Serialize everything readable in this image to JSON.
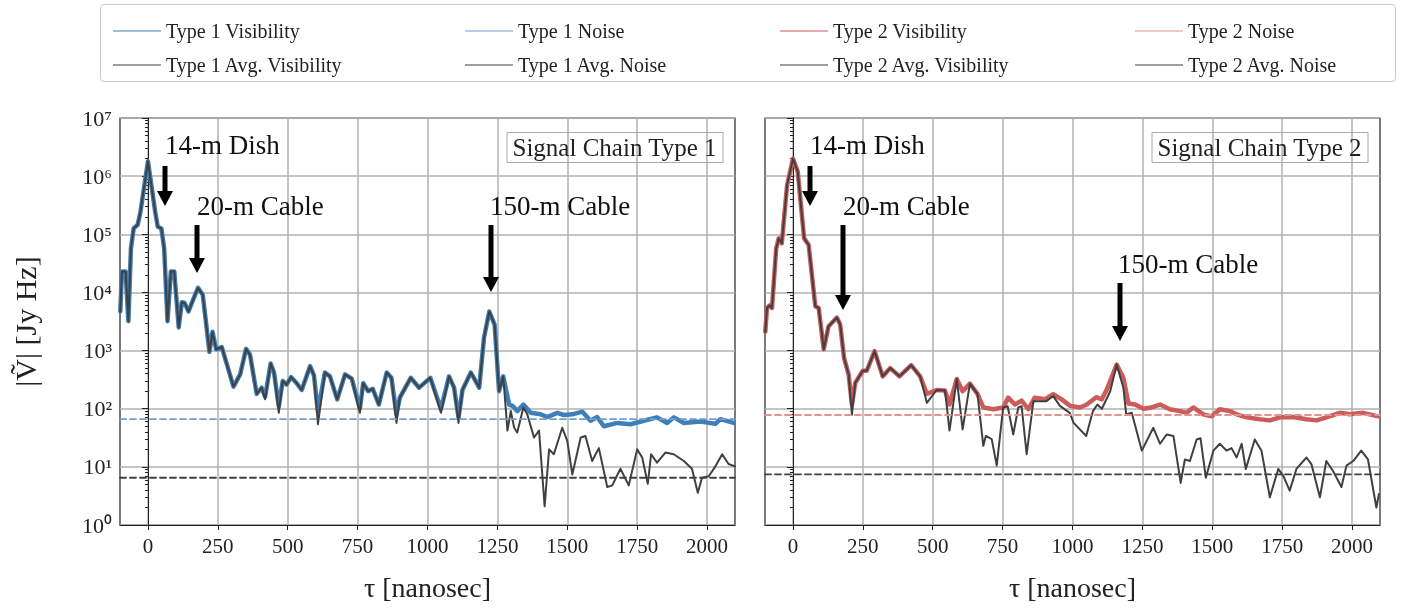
{
  "chart_data": [
    {
      "type": "line",
      "title": "Signal Chain Type 1",
      "xlabel": "τ [nanosec]",
      "ylabel": "|Ṽ| [Jy Hz]",
      "log": "y",
      "grid": true,
      "legend": "top",
      "marker": "none",
      "xlim": [
        -100,
        2100
      ],
      "xticks": [
        0,
        250,
        500,
        750,
        1000,
        1250,
        1500,
        1750,
        2000
      ],
      "ylim": [
        1,
        10000000
      ],
      "yticks": [
        {
          "value": 1,
          "label": "10⁰"
        },
        {
          "value": 10,
          "label": "10¹"
        },
        {
          "value": 100,
          "label": "10²"
        },
        {
          "value": 1000,
          "label": "10³"
        },
        {
          "value": 10000,
          "label": "10⁴"
        },
        {
          "value": 100000,
          "label": "10⁵"
        },
        {
          "value": 1000000,
          "label": "10⁶"
        },
        {
          "value": 10000000,
          "label": "10⁷"
        }
      ],
      "annotations": [
        "14-m Dish",
        "20-m Cable",
        "150-m Cable"
      ],
      "series": [
        {
          "name": "Type 1 Visibility",
          "color": "#3f7fb8",
          "x": [
            -99,
            -93,
            -80,
            -70,
            -61,
            -51,
            -37,
            -27,
            0,
            26,
            35,
            48,
            58,
            70,
            82,
            94,
            110,
            121,
            131,
            145,
            157,
            179,
            196,
            220,
            231,
            244,
            264,
            306,
            330,
            351,
            365,
            389,
            407,
            419,
            439,
            451,
            468,
            482,
            496,
            512,
            532,
            550,
            580,
            594,
            608,
            633,
            651,
            677,
            705,
            729,
            758,
            770,
            788,
            804,
            826,
            854,
            871,
            889,
            901,
            940,
            970,
            1010,
            1048,
            1077,
            1095,
            1111,
            1125,
            1155,
            1185,
            1202,
            1221,
            1240,
            1256,
            1271,
            1292,
            1304,
            1321,
            1343,
            1369,
            1405,
            1429,
            1464,
            1488,
            1518,
            1554,
            1583,
            1607,
            1631,
            1679,
            1726,
            1774,
            1821,
            1857,
            1881,
            1917,
            1976,
            2030,
            2048,
            2095
          ],
          "values": [
            4700,
            23000,
            23000,
            3200,
            57000,
            127000,
            145000,
            240000,
            1800000,
            240000,
            135000,
            126000,
            57000,
            3200,
            23000,
            23000,
            2500,
            6800,
            6600,
            4700,
            6600,
            12000,
            9100,
            950,
            2100,
            1050,
            1150,
            240,
            390,
            1070,
            850,
            180,
            230,
            160,
            600,
            420,
            110,
            300,
            260,
            350,
            275,
            210,
            540,
            370,
            90,
            420,
            360,
            145,
            390,
            330,
            100,
            275,
            200,
            220,
            118,
            420,
            340,
            80,
            155,
            340,
            230,
            340,
            100,
            360,
            230,
            70,
            210,
            420,
            230,
            1650,
            4700,
            2800,
            200,
            360,
            118,
            112,
            91,
            118,
            85,
            80,
            72,
            85,
            78,
            80,
            89,
            62,
            72,
            50,
            57,
            54,
            62,
            71,
            57,
            71,
            57,
            60,
            55,
            66,
            57
          ]
        },
        {
          "name": "Type 1 Avg. Visibility",
          "color": "#404040",
          "x": [
            -99,
            -93,
            -80,
            -70,
            -61,
            -51,
            -37,
            -27,
            0,
            26,
            35,
            48,
            58,
            70,
            82,
            94,
            110,
            121,
            131,
            145,
            157,
            179,
            196,
            220,
            231,
            244,
            264,
            306,
            330,
            351,
            365,
            389,
            407,
            419,
            439,
            451,
            468,
            482,
            496,
            512,
            532,
            550,
            580,
            594,
            608,
            633,
            651,
            677,
            705,
            729,
            758,
            770,
            788,
            804,
            826,
            854,
            871,
            889,
            901,
            940,
            970,
            1010,
            1048,
            1077,
            1095,
            1111,
            1125,
            1155,
            1185,
            1202,
            1221,
            1240,
            1256,
            1271,
            1286,
            1298,
            1310,
            1321,
            1343,
            1357,
            1381,
            1399,
            1419,
            1435,
            1452,
            1482,
            1500,
            1518,
            1548,
            1565,
            1589,
            1613,
            1643,
            1661,
            1690,
            1720,
            1750,
            1768,
            1788,
            1800,
            1821,
            1851,
            1881,
            1917,
            1946,
            1967,
            1982,
            2006,
            2030,
            2054,
            2077,
            2100
          ],
          "values": [
            4700,
            23000,
            23000,
            3200,
            57000,
            127000,
            145000,
            240000,
            1800000,
            240000,
            135000,
            126000,
            57000,
            3200,
            23000,
            23000,
            2500,
            6800,
            6600,
            4700,
            6600,
            12000,
            9100,
            950,
            2100,
            1050,
            1150,
            240,
            390,
            1070,
            850,
            180,
            230,
            145,
            600,
            420,
            85,
            300,
            260,
            350,
            275,
            210,
            540,
            370,
            54,
            420,
            360,
            145,
            390,
            330,
            85,
            275,
            200,
            220,
            118,
            420,
            340,
            57,
            155,
            340,
            230,
            340,
            85,
            360,
            230,
            57,
            210,
            420,
            230,
            1650,
            4700,
            2800,
            200,
            360,
            42,
            91,
            47,
            39,
            105,
            80,
            32,
            42,
            2.1,
            20,
            16.5,
            47,
            28,
            7.4,
            32,
            34,
            12.6,
            21,
            4.5,
            4.8,
            9.3,
            4.8,
            20,
            14.5,
            5.1,
            16.5,
            11.8,
            17.6,
            16.5,
            12.6,
            9.3,
            3.6,
            6.5,
            6.9,
            10.2,
            16.5,
            11.2,
            10.2
          ]
        },
        {
          "name": "Type 1 Noise",
          "color": "#6f9fd0",
          "line_style": "dashed",
          "x": [
            -100,
            2100
          ],
          "values": [
            66,
            66
          ]
        },
        {
          "name": "Type 1 Avg. Noise",
          "color": "#404040",
          "line_style": "dashed",
          "x": [
            -100,
            2100
          ],
          "values": [
            6.5,
            6.5
          ]
        }
      ]
    },
    {
      "type": "line",
      "title": "Signal Chain Type 2",
      "xlabel": "τ [nanosec]",
      "log": "y",
      "grid": true,
      "legend": "top",
      "marker": "none",
      "tick_labels": "x",
      "xlim": [
        -100,
        2100
      ],
      "xticks": [
        0,
        250,
        500,
        750,
        1000,
        1250,
        1500,
        1750,
        2000
      ],
      "ylim": [
        1,
        10000000
      ],
      "annotations": [
        "14-m Dish",
        "20-m Cable",
        "150-m Cable"
      ],
      "series": [
        {
          "name": "Type 2 Visibility",
          "color": "#cd5b5b",
          "x": [
            -99,
            -93,
            -83,
            -75,
            -60,
            -51,
            -40,
            -21,
            0,
            17,
            40,
            56,
            80,
            92,
            110,
            127,
            157,
            169,
            183,
            199,
            211,
            223,
            250,
            264,
            292,
            321,
            348,
            381,
            423,
            455,
            479,
            514,
            544,
            560,
            586,
            607,
            633,
            660,
            681,
            717,
            752,
            770,
            794,
            818,
            842,
            865,
            901,
            931,
            961,
            992,
            1027,
            1051,
            1085,
            1105,
            1123,
            1158,
            1182,
            1200,
            1224,
            1254,
            1283,
            1313,
            1348,
            1384,
            1408,
            1432,
            1468,
            1498,
            1527,
            1563,
            1587,
            1623,
            1670,
            1706,
            1742,
            1789,
            1837,
            1873,
            1908,
            1956,
            1992,
            2039,
            2093
          ],
          "values": [
            2100,
            5400,
            6000,
            5400,
            57000,
            85000,
            70000,
            700000,
            2000000,
            1200000,
            85000,
            66000,
            5800,
            5400,
            1050,
            2600,
            3700,
            2800,
            740,
            390,
            118,
            280,
            450,
            450,
            980,
            360,
            500,
            360,
            560,
            360,
            180,
            210,
            205,
            118,
            325,
            200,
            270,
            180,
            105,
            98,
            105,
            155,
            118,
            138,
            98,
            155,
            145,
            178,
            145,
            112,
            105,
            118,
            158,
            145,
            215,
            575,
            340,
            123,
            118,
            100,
            105,
            118,
            98,
            91,
            85,
            105,
            80,
            74,
            98,
            91,
            80,
            71,
            66,
            63,
            71,
            72,
            66,
            63,
            71,
            85,
            80,
            85,
            74
          ]
        },
        {
          "name": "Type 2 Avg. Visibility",
          "color": "#404040",
          "x": [
            -99,
            -93,
            -83,
            -75,
            -60,
            -51,
            -40,
            -21,
            0,
            17,
            40,
            56,
            80,
            92,
            110,
            127,
            157,
            169,
            183,
            199,
            211,
            223,
            250,
            264,
            292,
            321,
            348,
            381,
            423,
            455,
            479,
            514,
            544,
            560,
            586,
            607,
            633,
            660,
            681,
            690,
            711,
            729,
            752,
            768,
            788,
            806,
            818,
            836,
            860,
            907,
            931,
            955,
            990,
            1004,
            1049,
            1073,
            1089,
            1105,
            1135,
            1158,
            1182,
            1192,
            1212,
            1248,
            1289,
            1313,
            1337,
            1361,
            1387,
            1402,
            1420,
            1444,
            1458,
            1477,
            1504,
            1527,
            1551,
            1569,
            1587,
            1605,
            1620,
            1652,
            1676,
            1706,
            1736,
            1754,
            1777,
            1801,
            1837,
            1855,
            1885,
            1908,
            1932,
            1962,
            1980,
            2004,
            2033,
            2057,
            2087,
            2096
          ],
          "values": [
            2100,
            5400,
            6000,
            5400,
            57000,
            85000,
            70000,
            700000,
            2000000,
            1200000,
            85000,
            66000,
            5800,
            5400,
            1050,
            2600,
            3700,
            2800,
            740,
            390,
            79,
            280,
            450,
            450,
            980,
            360,
            500,
            360,
            560,
            360,
            126,
            210,
            205,
            42,
            325,
            44,
            270,
            180,
            23,
            34,
            30,
            10.5,
            105,
            110,
            36,
            105,
            110,
            16.5,
            135,
            135,
            165,
            112,
            85,
            57,
            34,
            91,
            118,
            100,
            200,
            575,
            230,
            80,
            85,
            19,
            47,
            25,
            36,
            34,
            5.3,
            13.4,
            12.6,
            29.5,
            31,
            6.5,
            19,
            25,
            19,
            21,
            14.5,
            25,
            9.2,
            29.5,
            19,
            3,
            9.2,
            7,
            3.9,
            9.2,
            14.5,
            11,
            3,
            12.6,
            8.5,
            4.5,
            10.5,
            12.6,
            19,
            13.4,
            2,
            3.4
          ]
        },
        {
          "name": "Type 2 Noise",
          "color": "#e0948e",
          "line_style": "dashed",
          "x": [
            -100,
            2100
          ],
          "values": [
            78,
            78
          ]
        },
        {
          "name": "Type 2 Avg. Noise",
          "color": "#404040",
          "line_style": "dashed",
          "x": [
            -100,
            2100
          ],
          "values": [
            7.4,
            7.4
          ]
        }
      ]
    }
  ]
}
